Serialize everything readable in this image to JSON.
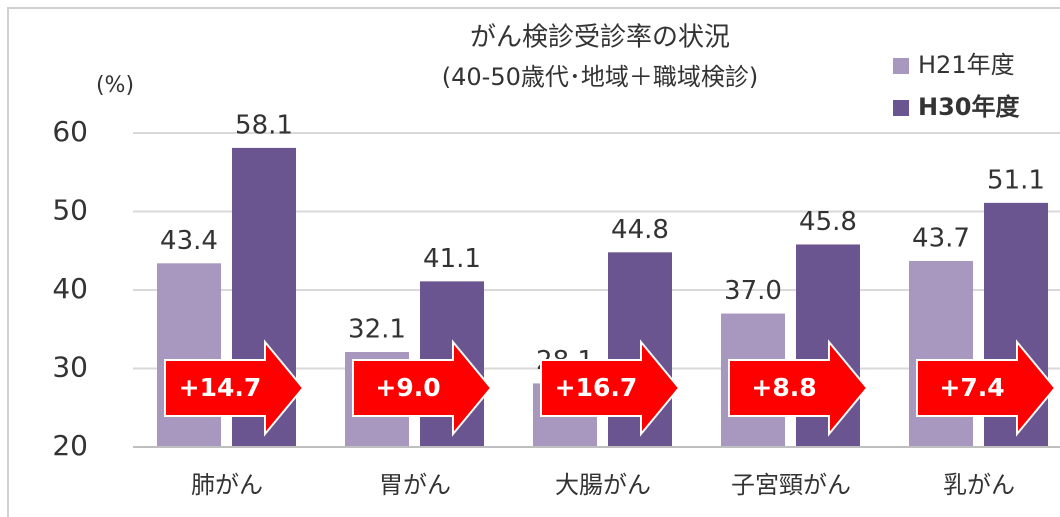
{
  "chart_data": {
    "type": "bar",
    "title": "がん検診受診率の状況",
    "subtitle": "(40-50歳代･地域＋職域検診)",
    "y_label": "(%)",
    "categories": [
      "肺がん",
      "胃がん",
      "大腸がん",
      "子宮頸がん",
      "乳がん"
    ],
    "series": [
      {
        "name": "H21年度",
        "color": "#a898c0",
        "values": [
          43.4,
          32.1,
          28.1,
          37.0,
          43.7
        ],
        "value_labels": [
          "43.4",
          "32.1",
          "28.1",
          "37.0",
          "43.7"
        ]
      },
      {
        "name": "H30年度",
        "color": "#6b5590",
        "values": [
          58.1,
          41.1,
          44.8,
          45.8,
          51.1
        ],
        "value_labels": [
          "58.1",
          "41.1",
          "44.8",
          "45.8",
          "51.1"
        ]
      }
    ],
    "annotations": [
      "+14.7",
      "+9.0",
      "+16.7",
      "+8.8",
      "+7.4"
    ],
    "annotation_color": "#ff0000",
    "ylim": [
      20,
      60
    ],
    "yticks": [
      20,
      30,
      40,
      50,
      60
    ],
    "grid": true,
    "legend": "top-right"
  }
}
